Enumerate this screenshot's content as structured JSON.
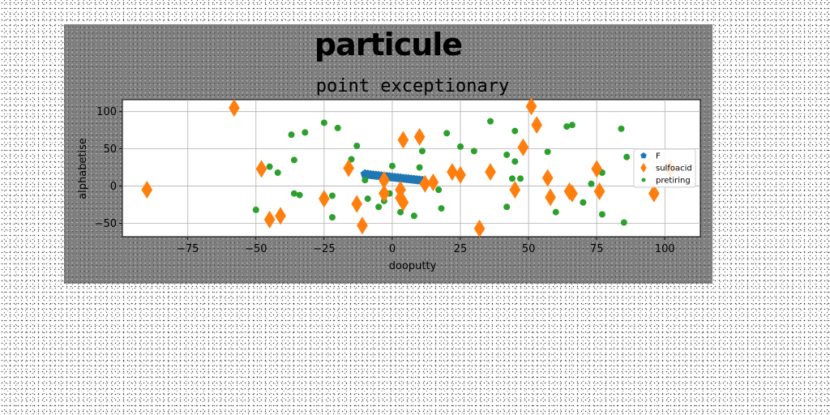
{
  "chart_data": {
    "type": "scatter",
    "suptitle": "particule",
    "title": "point exceptionary",
    "xlabel": "dooputty",
    "ylabel": "alphabetise",
    "xlim": [
      -99,
      113
    ],
    "ylim": [
      -68,
      116
    ],
    "xticks": [
      -75,
      -50,
      -25,
      0,
      25,
      50,
      75,
      100
    ],
    "yticks": [
      -50,
      0,
      50,
      100
    ],
    "grid": true,
    "legend_position": "right",
    "series": [
      {
        "name": "F",
        "marker": "pentagon",
        "color": "#1f77b4",
        "points": [
          [
            -10,
            16
          ],
          [
            -9,
            15.5
          ],
          [
            -8,
            15
          ],
          [
            -7,
            14.6
          ],
          [
            -6,
            14.2
          ],
          [
            -5,
            13.8
          ],
          [
            -4,
            13.4
          ],
          [
            -3,
            13
          ],
          [
            -2,
            12.6
          ],
          [
            -1,
            12.2
          ],
          [
            0,
            11.8
          ],
          [
            1,
            11.4
          ],
          [
            2,
            11
          ],
          [
            3,
            10.6
          ],
          [
            4,
            10.2
          ],
          [
            5,
            9.8
          ],
          [
            6,
            9.4
          ],
          [
            7,
            9
          ],
          [
            8,
            8.6
          ],
          [
            9,
            8.2
          ],
          [
            10,
            7.8
          ],
          [
            11,
            7.4
          ]
        ]
      },
      {
        "name": "sulfoacid",
        "marker": "thin_diamond",
        "color": "#ff7f0e",
        "points": [
          [
            -90,
            -5
          ],
          [
            -58,
            105
          ],
          [
            -48,
            23
          ],
          [
            -45,
            -45
          ],
          [
            -41,
            -40
          ],
          [
            -25,
            -17
          ],
          [
            -16,
            24
          ],
          [
            -13,
            -24
          ],
          [
            -11,
            -53
          ],
          [
            -3,
            8
          ],
          [
            -3,
            -10
          ],
          [
            3,
            -5
          ],
          [
            3,
            -16
          ],
          [
            4,
            -22
          ],
          [
            4,
            62
          ],
          [
            10,
            66
          ],
          [
            12,
            3
          ],
          [
            15,
            5
          ],
          [
            22,
            19
          ],
          [
            25,
            15
          ],
          [
            32,
            -57
          ],
          [
            36,
            19
          ],
          [
            45,
            -5
          ],
          [
            48,
            52
          ],
          [
            51,
            107
          ],
          [
            53,
            82
          ],
          [
            57,
            11
          ],
          [
            58,
            -15
          ],
          [
            65,
            -7
          ],
          [
            66,
            -10
          ],
          [
            75,
            23
          ],
          [
            76,
            -7
          ],
          [
            96,
            -10
          ],
          [
            102,
            24
          ]
        ]
      },
      {
        "name": "pretiring",
        "marker": "circle",
        "color": "#2ca02c",
        "points": [
          [
            -50,
            -32
          ],
          [
            -45,
            26
          ],
          [
            -42,
            18
          ],
          [
            -37,
            69
          ],
          [
            -36,
            35
          ],
          [
            -36,
            -10
          ],
          [
            -34,
            -12
          ],
          [
            -32,
            72
          ],
          [
            -25,
            85
          ],
          [
            -22,
            -13
          ],
          [
            -22,
            -42
          ],
          [
            -20,
            78
          ],
          [
            -15,
            36
          ],
          [
            -13,
            54
          ],
          [
            -10,
            8
          ],
          [
            -9,
            -17
          ],
          [
            -5,
            -28
          ],
          [
            -3,
            -20
          ],
          [
            -1,
            -10
          ],
          [
            0,
            27
          ],
          [
            3,
            -35
          ],
          [
            8,
            -40
          ],
          [
            10,
            25
          ],
          [
            11,
            47
          ],
          [
            17,
            -5
          ],
          [
            18,
            -30
          ],
          [
            20,
            71
          ],
          [
            25,
            53
          ],
          [
            30,
            47
          ],
          [
            36,
            87
          ],
          [
            42,
            42
          ],
          [
            42,
            -28
          ],
          [
            44,
            10
          ],
          [
            45,
            74
          ],
          [
            45,
            33
          ],
          [
            47,
            10
          ],
          [
            48,
            48
          ],
          [
            57,
            46
          ],
          [
            60,
            -35
          ],
          [
            64,
            80
          ],
          [
            66,
            82
          ],
          [
            70,
            -22
          ],
          [
            73,
            3
          ],
          [
            77,
            18
          ],
          [
            77,
            -38
          ],
          [
            84,
            77
          ],
          [
            85,
            -49
          ],
          [
            86,
            39
          ]
        ]
      }
    ]
  }
}
